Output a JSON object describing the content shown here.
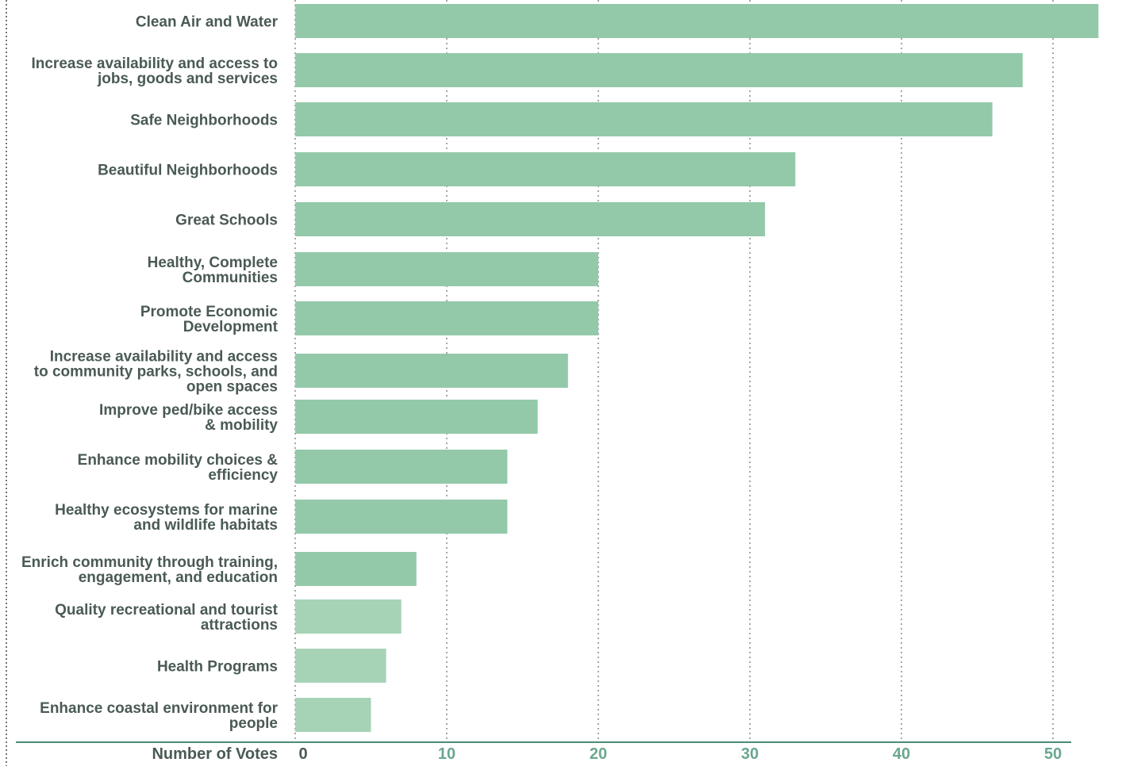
{
  "chart_data": {
    "type": "bar",
    "orientation": "horizontal",
    "categories": [
      [
        "Clean Air and Water"
      ],
      [
        "Increase availability and access to",
        "jobs, goods and services"
      ],
      [
        "Safe Neighborhoods"
      ],
      [
        "Beautiful Neighborhoods"
      ],
      [
        "Great Schools"
      ],
      [
        "Healthy, Complete",
        "Communities"
      ],
      [
        "Promote Economic",
        "Development"
      ],
      [
        "Increase availability and access",
        "to community parks, schools, and",
        "open spaces"
      ],
      [
        "Improve ped/bike access",
        "& mobility"
      ],
      [
        "Enhance mobility choices &",
        "efficiency"
      ],
      [
        "Healthy ecosystems for marine",
        "and wildlife habitats"
      ],
      [
        "Enrich community through training,",
        "engagement, and education"
      ],
      [
        "Quality recreational and tourist",
        "attractions"
      ],
      [
        "Health Programs"
      ],
      [
        "Enhance  coastal environment for",
        "people"
      ]
    ],
    "values": [
      53,
      48,
      46,
      33,
      31,
      20,
      20,
      18,
      16,
      14,
      14,
      8,
      7,
      6,
      5
    ],
    "xlabel": "Number of Votes",
    "xticks": [
      0,
      10,
      20,
      30,
      40,
      50
    ],
    "xlim": [
      0,
      53
    ],
    "grid": "vertical dotted",
    "legend": "none",
    "colors": {
      "bar": "#93c9a9",
      "bar_light": "#a6d3b6",
      "axis_line": "#4a8a78",
      "grid": "#8a8a8a",
      "frame": "#777777",
      "label_text": "#4a5a55",
      "tick_text": "#6aa78e"
    }
  }
}
